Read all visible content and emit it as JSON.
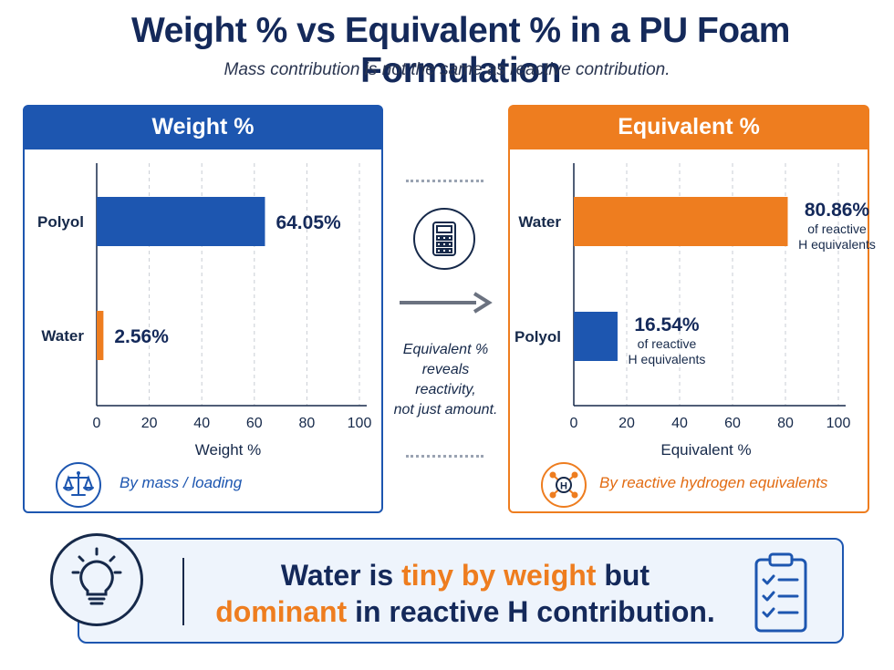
{
  "title": "Weight % vs Equivalent % in a PU Foam Formulation",
  "subtitle": "Mass contribution is not the same as reactive contribution.",
  "colors": {
    "blue": "#1d56b0",
    "orange": "#ee7d1f",
    "navy": "#14295a"
  },
  "left_panel": {
    "header": "Weight %",
    "footer_icon": "balance-scale-icon",
    "footer_text": "By mass / loading"
  },
  "right_panel": {
    "header": "Equivalent %",
    "footer_icon": "molecule-h-icon",
    "footer_text": "By reactive hydrogen equivalents"
  },
  "middle": {
    "icon": "calculator-icon",
    "arrow_icon": "arrow-right-icon",
    "note": [
      "Equivalent %",
      "reveals",
      "reactivity,",
      "not just amount."
    ]
  },
  "banner": {
    "icon_left": "lightbulb-icon",
    "icon_right": "checklist-clipboard-icon",
    "line1": {
      "a": "Water is ",
      "b": "tiny by weight",
      "c": " but"
    },
    "line2": {
      "a": "dominant",
      "b": " in reactive H contribution."
    }
  },
  "chart_data": [
    {
      "type": "bar",
      "orientation": "horizontal",
      "title": "Weight %",
      "xlabel": "Weight %",
      "ylabel": "",
      "xlim": [
        0,
        100
      ],
      "xticks": [
        0,
        20,
        40,
        60,
        80,
        100
      ],
      "grid": "vertical-dashed",
      "categories": [
        "Polyol",
        "Water"
      ],
      "values": [
        64.05,
        2.56
      ],
      "value_labels": [
        "64.05%",
        "2.56%"
      ],
      "sub_labels": [
        "",
        ""
      ],
      "bar_colors": [
        "#1d56b0",
        "#ee7d1f"
      ]
    },
    {
      "type": "bar",
      "orientation": "horizontal",
      "title": "Equivalent %",
      "xlabel": "Equivalent %",
      "ylabel": "",
      "xlim": [
        0,
        100
      ],
      "xticks": [
        0,
        20,
        40,
        60,
        80,
        100
      ],
      "grid": "vertical-dashed",
      "categories": [
        "Water",
        "Polyol"
      ],
      "values": [
        80.86,
        16.54
      ],
      "value_labels": [
        "80.86%",
        "16.54%"
      ],
      "sub_labels": [
        [
          "of reactive",
          "H equivalents"
        ],
        [
          "of reactive",
          "H equivalents"
        ]
      ],
      "bar_colors": [
        "#ee7d1f",
        "#1d56b0"
      ]
    }
  ]
}
